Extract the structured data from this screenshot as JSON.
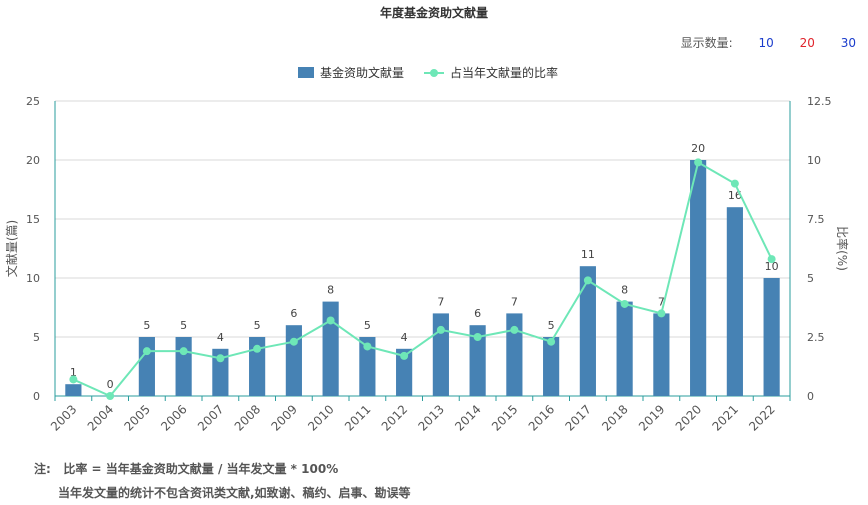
{
  "colors": {
    "bar": "#4682b4",
    "line": "#6ee7b7",
    "axis": "#2a9d9d",
    "grid": "#d9d9d9",
    "opt10": "#1a3ccc",
    "opt20": "#e0242c",
    "opt30": "#1a3ccc"
  },
  "controls": {
    "label": "显示数量:",
    "options": [
      "10",
      "20",
      "30"
    ]
  },
  "note": {
    "prefix": "注:",
    "formula": "比率 = 当年基金资助文献量 / 当年发文量 * 100%",
    "detail": "当年发文量的统计不包含资讯类文献,如致谢、稿约、启事、勘误等"
  },
  "chart_data": {
    "type": "bar",
    "title": "年度基金资助文献量",
    "categories": [
      "2003",
      "2004",
      "2005",
      "2006",
      "2007",
      "2008",
      "2009",
      "2010",
      "2011",
      "2012",
      "2013",
      "2014",
      "2015",
      "2016",
      "2017",
      "2018",
      "2019",
      "2020",
      "2021",
      "2022"
    ],
    "series": [
      {
        "name": "基金资助文献量",
        "type": "bar",
        "axis": "left",
        "values": [
          1,
          0,
          5,
          5,
          4,
          5,
          6,
          8,
          5,
          4,
          7,
          6,
          7,
          5,
          11,
          8,
          7,
          20,
          16,
          10
        ]
      },
      {
        "name": "占当年文献量的比率",
        "type": "line",
        "axis": "right",
        "values": [
          0.7,
          0,
          1.9,
          1.9,
          1.6,
          2.0,
          2.3,
          3.2,
          2.1,
          1.7,
          2.8,
          2.5,
          2.8,
          2.3,
          4.9,
          3.9,
          3.5,
          9.9,
          9.0,
          5.8
        ]
      }
    ],
    "ylabel": "文献量(篇)",
    "y2label": "比率(%)",
    "ylim": [
      0,
      25
    ],
    "y2lim": [
      0,
      12.5
    ],
    "yticks": [
      "0",
      "5",
      "10",
      "15",
      "20",
      "25"
    ],
    "y2ticks": [
      "0",
      "2.5",
      "5",
      "7.5",
      "10",
      "12.5"
    ],
    "grid": true,
    "legend": "top-center"
  }
}
